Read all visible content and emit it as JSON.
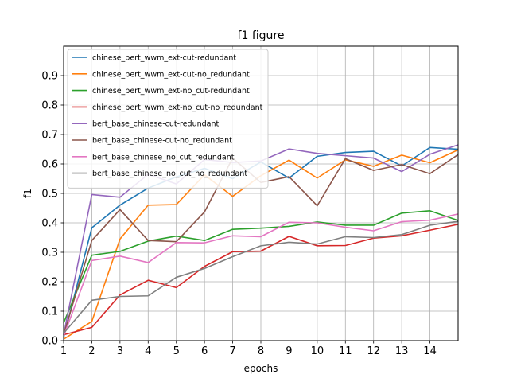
{
  "chart_data": {
    "type": "line",
    "title": "f1 figure",
    "xlabel": "epochs",
    "ylabel": "f1",
    "xlim": [
      1,
      15
    ],
    "ylim": [
      0,
      1.0
    ],
    "xticks": [
      1,
      2,
      3,
      4,
      5,
      6,
      7,
      8,
      9,
      10,
      11,
      12,
      13,
      14
    ],
    "yticks": [
      0.0,
      0.1,
      0.2,
      0.3,
      0.4,
      0.5,
      0.6,
      0.7,
      0.8,
      0.9
    ],
    "grid": true,
    "legend_position": "upper-left",
    "x": [
      1,
      2,
      3,
      4,
      5,
      6,
      7,
      8,
      9,
      10,
      11,
      12,
      13,
      14,
      15
    ],
    "series": [
      {
        "name": "chinese_bert_wwm_ext-cut-redundant",
        "color": "#1f77b4",
        "values": [
          0.01,
          0.383,
          0.46,
          0.518,
          0.556,
          0.585,
          0.55,
          0.607,
          0.552,
          0.626,
          0.639,
          0.643,
          0.593,
          0.656,
          0.65
        ]
      },
      {
        "name": "chinese_bert_wwm_ext-cut-no_redundant",
        "color": "#ff7f0e",
        "values": [
          0.005,
          0.065,
          0.345,
          0.46,
          0.462,
          0.563,
          0.49,
          0.56,
          0.613,
          0.552,
          0.614,
          0.592,
          0.63,
          0.604,
          0.648
        ]
      },
      {
        "name": "chinese_bert_wwm_ext-no_cut-redundant",
        "color": "#2ca02c",
        "values": [
          0.06,
          0.29,
          0.303,
          0.338,
          0.355,
          0.34,
          0.378,
          0.382,
          0.388,
          0.403,
          0.392,
          0.392,
          0.433,
          0.441,
          0.408
        ]
      },
      {
        "name": "chinese_bert_wwm_ext-no_cut-no_redundant",
        "color": "#d62728",
        "values": [
          0.02,
          0.045,
          0.155,
          0.205,
          0.18,
          0.252,
          0.302,
          0.304,
          0.354,
          0.322,
          0.323,
          0.348,
          0.356,
          0.375,
          0.395
        ]
      },
      {
        "name": "bert_base_chinese-cut-redundant",
        "color": "#9467bd",
        "values": [
          0.02,
          0.496,
          0.487,
          0.565,
          0.532,
          0.615,
          0.605,
          0.61,
          0.651,
          0.636,
          0.628,
          0.62,
          0.574,
          0.633,
          0.665
        ]
      },
      {
        "name": "bert_base_chinese-cut-no_redundant",
        "color": "#8c564b",
        "values": [
          0.02,
          0.34,
          0.445,
          0.34,
          0.336,
          0.437,
          0.62,
          0.537,
          0.557,
          0.458,
          0.618,
          0.578,
          0.598,
          0.567,
          0.632
        ]
      },
      {
        "name": "bert_base_chinese_no_cut_redundant",
        "color": "#e377c2",
        "values": [
          0.015,
          0.272,
          0.287,
          0.265,
          0.333,
          0.332,
          0.356,
          0.353,
          0.402,
          0.4,
          0.385,
          0.373,
          0.404,
          0.409,
          0.43
        ]
      },
      {
        "name": "bert_base_chinese_no_cut_no_redundant",
        "color": "#7f7f7f",
        "values": [
          0.025,
          0.137,
          0.15,
          0.152,
          0.215,
          0.245,
          0.285,
          0.322,
          0.334,
          0.328,
          0.353,
          0.35,
          0.36,
          0.392,
          0.405
        ]
      }
    ]
  }
}
